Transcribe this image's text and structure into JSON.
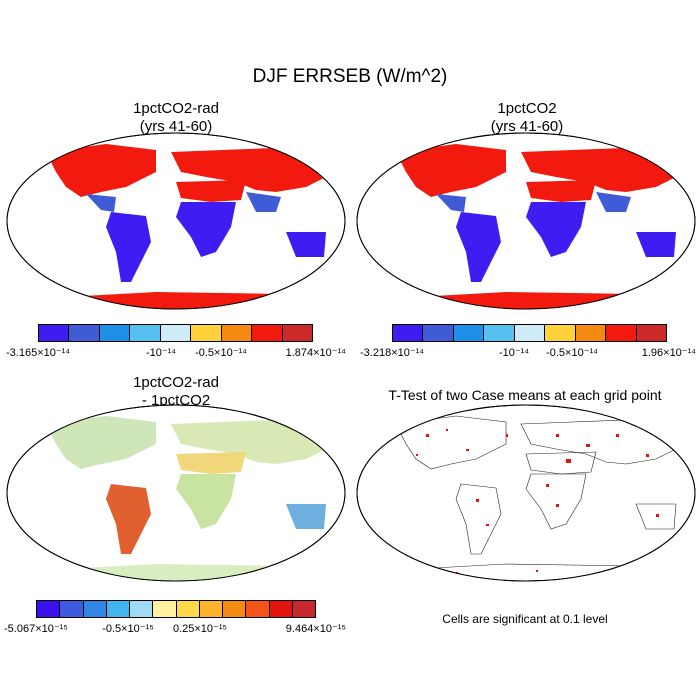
{
  "title": "DJF ERRSEB (W/m^2)",
  "panels": [
    {
      "title1": "1pctCO2-rad",
      "title2": "(yrs 41-60)"
    },
    {
      "title1": "1pctCO2",
      "title2": "(yrs 41-60)"
    },
    {
      "title1": "1pctCO2-rad",
      "title2": "- 1pctCO2"
    },
    {
      "title1": "T-Test of two Case means at each grid point",
      "title2": ""
    }
  ],
  "colorbars": [
    {
      "colors": [
        "#3f1cf2",
        "#3f5bd6",
        "#1e90e8",
        "#56c0ee",
        "#cfeaf8",
        "#ffd23a",
        "#f58a13",
        "#f21a0e",
        "#cc2a28"
      ],
      "labels": {
        "left": "-3.165×10⁻¹⁴",
        "mid1": "-10⁻¹⁴",
        "mid2": "-0.5×10⁻¹⁴",
        "right": "1.874×10⁻¹⁴"
      }
    },
    {
      "colors": [
        "#3f1cf2",
        "#3f5bd6",
        "#1e90e8",
        "#56c0ee",
        "#cfeaf8",
        "#ffd23a",
        "#f58a13",
        "#f21a0e",
        "#cc2a28"
      ],
      "labels": {
        "left": "-3.218×10⁻¹⁴",
        "mid1": "-10⁻¹⁴",
        "mid2": "-0.5×10⁻¹⁴",
        "right": "1.96×10⁻¹⁴"
      }
    },
    {
      "colors": [
        "#3a10ee",
        "#3e5be0",
        "#2f86e6",
        "#42b4f0",
        "#9fdcf4",
        "#fff2a0",
        "#ffd84b",
        "#fdb42c",
        "#f58a13",
        "#f4531a",
        "#e3140d",
        "#c6282d"
      ],
      "labels": {
        "left": "-5.067×10⁻¹⁵",
        "mid1": "-0.5×10⁻¹⁵",
        "mid2": "0.25×10⁻¹⁵",
        "right": "9.464×10⁻¹⁵"
      }
    }
  ],
  "note": "Cells are significant at 0.1 level"
}
